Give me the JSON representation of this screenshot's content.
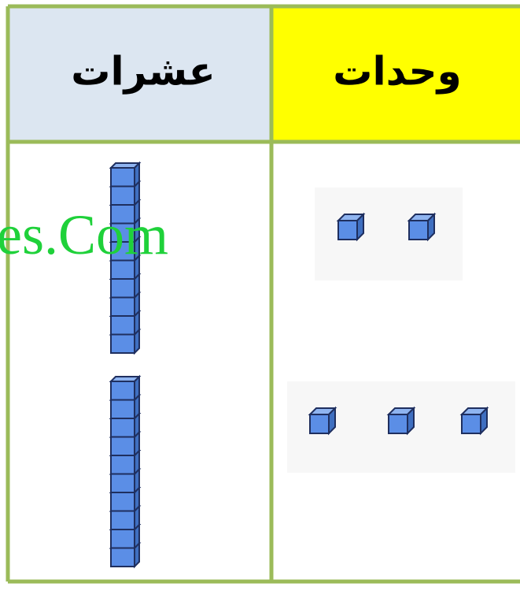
{
  "table": {
    "headers": [
      "عشرات",
      "وحدات"
    ]
  },
  "watermark": "es.Com"
}
